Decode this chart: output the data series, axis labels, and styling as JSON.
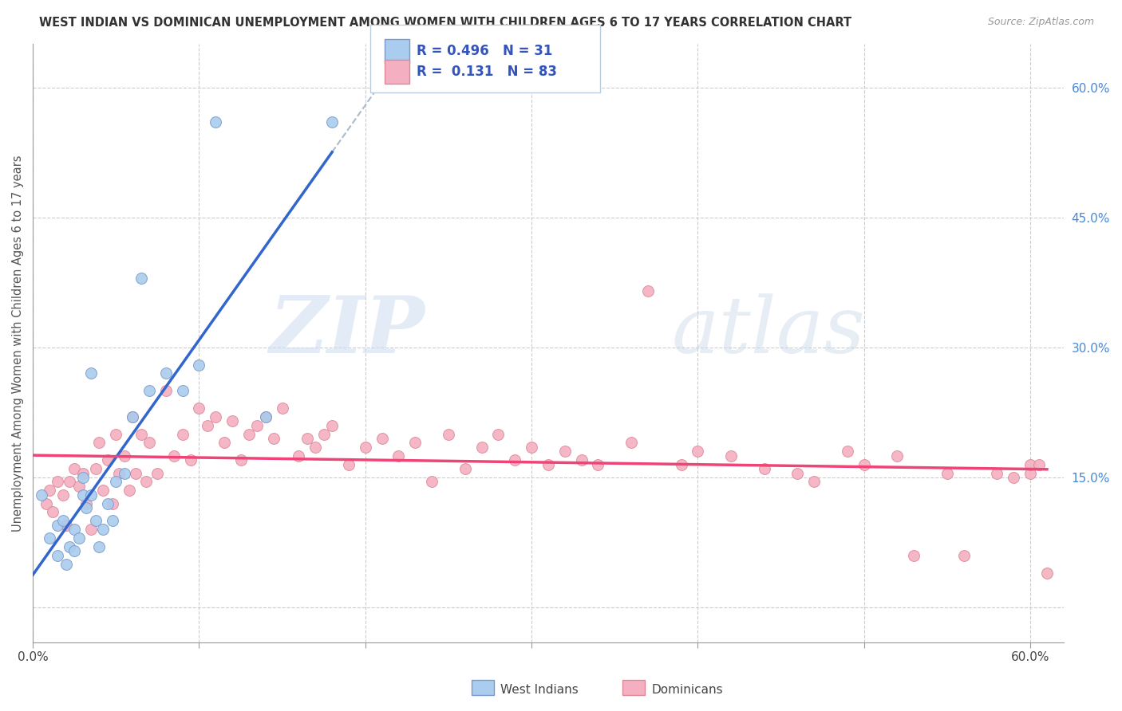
{
  "title": "WEST INDIAN VS DOMINICAN UNEMPLOYMENT AMONG WOMEN WITH CHILDREN AGES 6 TO 17 YEARS CORRELATION CHART",
  "source": "Source: ZipAtlas.com",
  "ylabel": "Unemployment Among Women with Children Ages 6 to 17 years",
  "xlim": [
    0.0,
    0.62
  ],
  "ylim": [
    -0.04,
    0.65
  ],
  "xtick_positions": [
    0.0,
    0.1,
    0.2,
    0.3,
    0.4,
    0.5,
    0.6
  ],
  "xticklabels_show": {
    "0.0": "0.0%",
    "0.60": "60.0%"
  },
  "yticks_right": [
    0.0,
    0.15,
    0.3,
    0.45,
    0.6
  ],
  "ytick_right_labels": [
    "",
    "15.0%",
    "30.0%",
    "45.0%",
    "60.0%"
  ],
  "background_color": "#ffffff",
  "grid_color": "#cccccc",
  "watermark_zip": "ZIP",
  "watermark_atlas": "atlas",
  "west_indian_color": "#aaccee",
  "west_indian_edge": "#7799cc",
  "dominican_color": "#f4b0c0",
  "dominican_edge": "#dd8899",
  "west_indian_line_color": "#3366cc",
  "dominican_line_color": "#ee4477",
  "trend_dashed_color": "#aabbcc",
  "legend_text_color": "#3355bb",
  "R_west_indian": "0.496",
  "N_west_indian": "31",
  "R_dominican": "0.131",
  "N_dominican": "83",
  "west_indian_x": [
    0.005,
    0.01,
    0.015,
    0.015,
    0.018,
    0.02,
    0.022,
    0.025,
    0.025,
    0.028,
    0.03,
    0.03,
    0.032,
    0.035,
    0.035,
    0.038,
    0.04,
    0.042,
    0.045,
    0.048,
    0.05,
    0.055,
    0.06,
    0.065,
    0.07,
    0.08,
    0.09,
    0.1,
    0.11,
    0.14,
    0.18
  ],
  "west_indian_y": [
    0.13,
    0.08,
    0.06,
    0.095,
    0.1,
    0.05,
    0.07,
    0.065,
    0.09,
    0.08,
    0.13,
    0.15,
    0.115,
    0.13,
    0.27,
    0.1,
    0.07,
    0.09,
    0.12,
    0.1,
    0.145,
    0.155,
    0.22,
    0.38,
    0.25,
    0.27,
    0.25,
    0.28,
    0.56,
    0.22,
    0.56
  ],
  "dominican_x": [
    0.008,
    0.01,
    0.012,
    0.015,
    0.018,
    0.02,
    0.022,
    0.025,
    0.028,
    0.03,
    0.032,
    0.035,
    0.038,
    0.04,
    0.042,
    0.045,
    0.048,
    0.05,
    0.052,
    0.055,
    0.058,
    0.06,
    0.062,
    0.065,
    0.068,
    0.07,
    0.075,
    0.08,
    0.085,
    0.09,
    0.095,
    0.1,
    0.105,
    0.11,
    0.115,
    0.12,
    0.125,
    0.13,
    0.135,
    0.14,
    0.145,
    0.15,
    0.16,
    0.165,
    0.17,
    0.175,
    0.18,
    0.19,
    0.2,
    0.21,
    0.22,
    0.23,
    0.24,
    0.25,
    0.26,
    0.27,
    0.28,
    0.29,
    0.3,
    0.31,
    0.32,
    0.33,
    0.34,
    0.36,
    0.37,
    0.39,
    0.4,
    0.42,
    0.44,
    0.46,
    0.47,
    0.49,
    0.5,
    0.52,
    0.53,
    0.55,
    0.56,
    0.58,
    0.59,
    0.6,
    0.6,
    0.605,
    0.61
  ],
  "dominican_y": [
    0.12,
    0.135,
    0.11,
    0.145,
    0.13,
    0.095,
    0.145,
    0.16,
    0.14,
    0.155,
    0.12,
    0.09,
    0.16,
    0.19,
    0.135,
    0.17,
    0.12,
    0.2,
    0.155,
    0.175,
    0.135,
    0.22,
    0.155,
    0.2,
    0.145,
    0.19,
    0.155,
    0.25,
    0.175,
    0.2,
    0.17,
    0.23,
    0.21,
    0.22,
    0.19,
    0.215,
    0.17,
    0.2,
    0.21,
    0.22,
    0.195,
    0.23,
    0.175,
    0.195,
    0.185,
    0.2,
    0.21,
    0.165,
    0.185,
    0.195,
    0.175,
    0.19,
    0.145,
    0.2,
    0.16,
    0.185,
    0.2,
    0.17,
    0.185,
    0.165,
    0.18,
    0.17,
    0.165,
    0.19,
    0.365,
    0.165,
    0.18,
    0.175,
    0.16,
    0.155,
    0.145,
    0.18,
    0.165,
    0.175,
    0.06,
    0.155,
    0.06,
    0.155,
    0.15,
    0.155,
    0.165,
    0.165,
    0.04
  ]
}
